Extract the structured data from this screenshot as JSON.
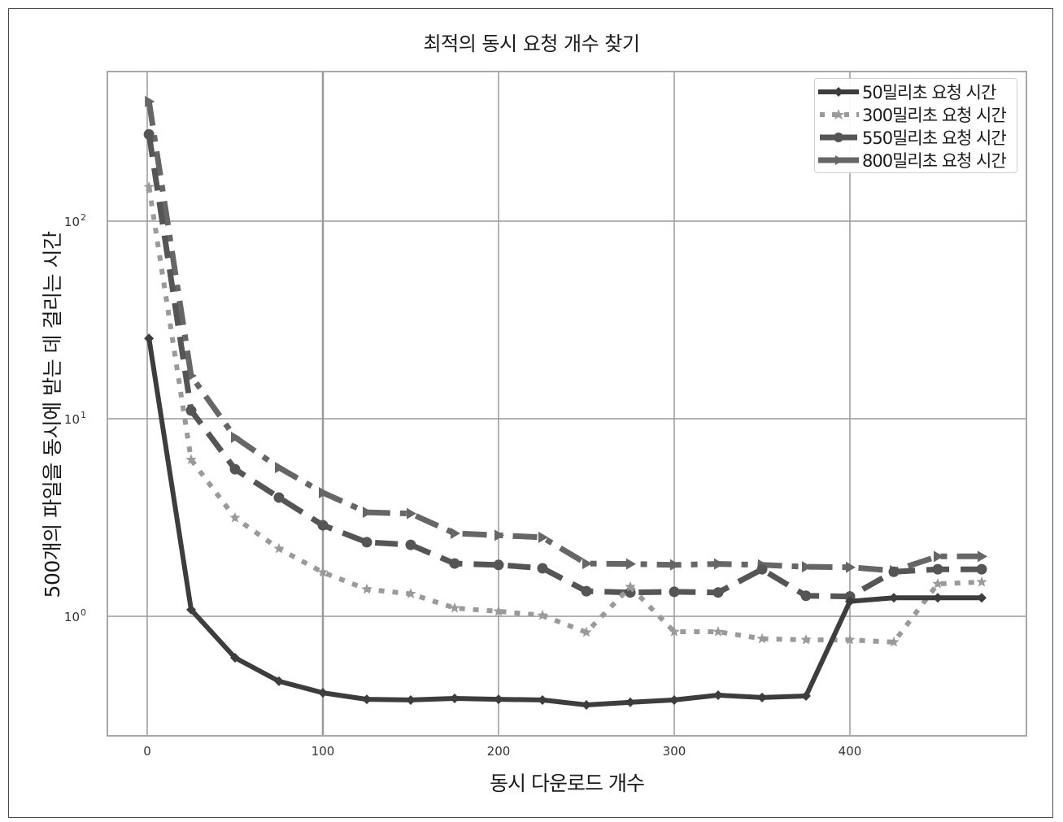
{
  "chart_data": {
    "type": "line",
    "title": "최적의 동시 요청 개수 찾기",
    "xlabel": "동시 다운로드 개수",
    "ylabel": "500개의 파일을 동시에 받는 데 걸리는 시간",
    "yscale": "log",
    "xlim": [
      -22,
      502
    ],
    "ylim": [
      0.265,
      560
    ],
    "xticks": [
      0,
      100,
      200,
      300,
      400
    ],
    "xtick_labels": [
      "0",
      "100",
      "200",
      "300",
      "400"
    ],
    "yticks": [
      1,
      10,
      100
    ],
    "ytick_labels": [
      "10^0",
      "10^1",
      "10^2"
    ],
    "grid": true,
    "legend_position": "upper right",
    "x": [
      1,
      25,
      50,
      75,
      100,
      125,
      150,
      175,
      200,
      225,
      250,
      275,
      300,
      325,
      350,
      375,
      400,
      425,
      450,
      475
    ],
    "series": [
      {
        "name": "50밀리초 요청 시간",
        "style": "solid",
        "marker": "diamond",
        "color": "#3d3d3d",
        "values": [
          25.5,
          1.08,
          0.617,
          0.469,
          0.41,
          0.38,
          0.377,
          0.384,
          0.38,
          0.377,
          0.356,
          0.367,
          0.377,
          0.399,
          0.388,
          0.395,
          1.19,
          1.24,
          1.24,
          1.24
        ]
      },
      {
        "name": "300밀리초 요청 시간",
        "style": "dotted",
        "marker": "star",
        "color": "#9a9a9a",
        "values": [
          149,
          6.2,
          3.15,
          2.2,
          1.67,
          1.37,
          1.3,
          1.1,
          1.06,
          1.01,
          0.83,
          1.41,
          0.835,
          0.835,
          0.77,
          0.76,
          0.76,
          0.74,
          1.46,
          1.49
        ]
      },
      {
        "name": "550밀리초 요청 시간",
        "style": "dashed",
        "marker": "circle",
        "color": "#555555",
        "values": [
          275,
          11.0,
          5.55,
          3.99,
          2.89,
          2.37,
          2.3,
          1.85,
          1.82,
          1.75,
          1.34,
          1.32,
          1.33,
          1.32,
          1.73,
          1.27,
          1.26,
          1.68,
          1.73,
          1.73
        ]
      },
      {
        "name": "800밀리초 요청 시간",
        "style": "dashdot",
        "marker": "triangle-right",
        "color": "#666666",
        "values": [
          403,
          16.5,
          8.05,
          5.66,
          4.22,
          3.36,
          3.31,
          2.63,
          2.57,
          2.51,
          1.85,
          1.84,
          1.82,
          1.84,
          1.82,
          1.78,
          1.77,
          1.7,
          2.01,
          2.01
        ]
      }
    ]
  },
  "legend": {
    "items": [
      {
        "label": "50밀리초 요청 시간"
      },
      {
        "label": "300밀리초 요청 시간"
      },
      {
        "label": "550밀리초 요청 시간"
      },
      {
        "label": "800밀리초 요청 시간"
      }
    ]
  }
}
